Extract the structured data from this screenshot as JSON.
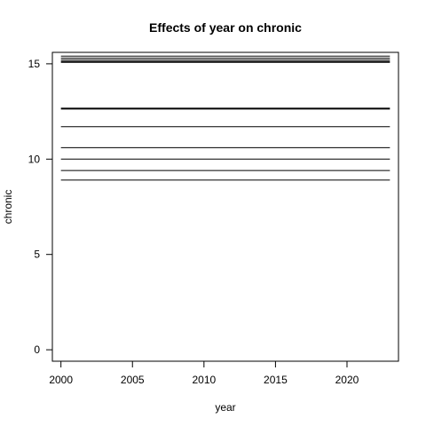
{
  "chart_data": {
    "type": "line",
    "title": "Effects of year on chronic",
    "xlabel": "year",
    "ylabel": "chronic",
    "xlim": [
      1999.4,
      2023.6
    ],
    "ylim": [
      -0.6,
      15.6
    ],
    "xticks": [
      2000,
      2005,
      2010,
      2015,
      2020
    ],
    "yticks": [
      0,
      5,
      10,
      15
    ],
    "x": [
      2000,
      2023
    ],
    "grid": false,
    "series": [
      {
        "values": [
          8.9,
          8.9
        ],
        "bold": false
      },
      {
        "values": [
          9.4,
          9.4
        ],
        "bold": false
      },
      {
        "values": [
          10.0,
          10.0
        ],
        "bold": false
      },
      {
        "values": [
          10.6,
          10.6
        ],
        "bold": false
      },
      {
        "values": [
          11.7,
          11.7
        ],
        "bold": false
      },
      {
        "values": [
          12.65,
          12.65
        ],
        "bold": true
      },
      {
        "values": [
          15.1,
          15.1
        ],
        "bold": true
      },
      {
        "values": [
          15.2,
          15.2
        ],
        "bold": false
      },
      {
        "values": [
          15.3,
          15.3
        ],
        "bold": false
      },
      {
        "values": [
          15.4,
          15.4
        ],
        "bold": false
      }
    ]
  }
}
